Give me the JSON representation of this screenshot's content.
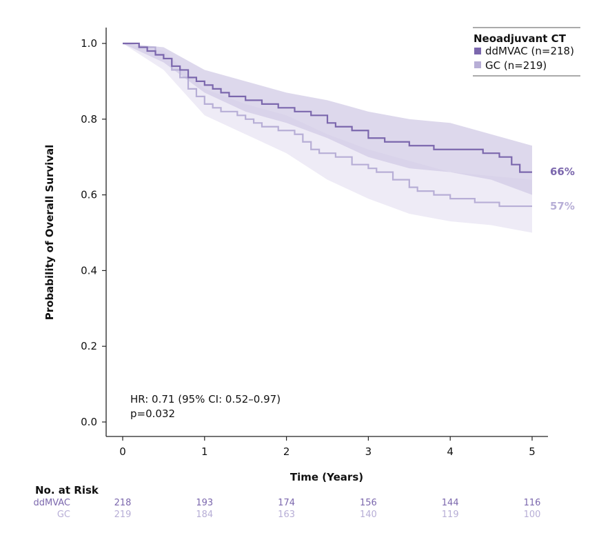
{
  "chart_data": {
    "type": "line",
    "title": "",
    "xlabel": "Time (Years)",
    "ylabel": "Probability of Overall Survival",
    "xlim": [
      0,
      5
    ],
    "ylim": [
      0,
      1.0
    ],
    "x_ticks": [
      "0",
      "1",
      "2",
      "3",
      "4",
      "5"
    ],
    "y_ticks": [
      "0.0",
      "0.2",
      "0.4",
      "0.6",
      "0.8",
      "1.0"
    ],
    "grid": false,
    "legend": {
      "title": "Neoadjuvant CT",
      "position": "top-right",
      "entries": [
        "ddMVAC (n=218)",
        "GC (n=219)"
      ]
    },
    "annotation": {
      "hr": "HR: 0.71 (95% CI: 0.52–0.97)",
      "p": "p=0.032"
    },
    "series": [
      {
        "name": "ddMVAC",
        "color": "#7b67ad",
        "band_color": "#d2cbe6",
        "end_label": "66%",
        "points": [
          [
            0,
            1.0
          ],
          [
            0.2,
            0.99
          ],
          [
            0.3,
            0.98
          ],
          [
            0.4,
            0.97
          ],
          [
            0.5,
            0.96
          ],
          [
            0.6,
            0.94
          ],
          [
            0.7,
            0.93
          ],
          [
            0.8,
            0.91
          ],
          [
            0.9,
            0.9
          ],
          [
            1.0,
            0.89
          ],
          [
            1.1,
            0.88
          ],
          [
            1.2,
            0.87
          ],
          [
            1.3,
            0.86
          ],
          [
            1.4,
            0.86
          ],
          [
            1.5,
            0.85
          ],
          [
            1.6,
            0.85
          ],
          [
            1.7,
            0.84
          ],
          [
            1.9,
            0.83
          ],
          [
            2.1,
            0.82
          ],
          [
            2.3,
            0.81
          ],
          [
            2.5,
            0.79
          ],
          [
            2.6,
            0.78
          ],
          [
            2.8,
            0.77
          ],
          [
            3.0,
            0.75
          ],
          [
            3.2,
            0.74
          ],
          [
            3.5,
            0.73
          ],
          [
            3.8,
            0.72
          ],
          [
            4.2,
            0.72
          ],
          [
            4.4,
            0.71
          ],
          [
            4.6,
            0.7
          ],
          [
            4.75,
            0.68
          ],
          [
            4.85,
            0.66
          ],
          [
            5.0,
            0.66
          ]
        ],
        "ci_upper": [
          [
            0,
            1.0
          ],
          [
            0.5,
            0.99
          ],
          [
            1.0,
            0.93
          ],
          [
            1.5,
            0.9
          ],
          [
            2.0,
            0.87
          ],
          [
            2.5,
            0.85
          ],
          [
            3.0,
            0.82
          ],
          [
            3.5,
            0.8
          ],
          [
            4.0,
            0.79
          ],
          [
            4.5,
            0.76
          ],
          [
            5.0,
            0.73
          ]
        ],
        "ci_lower": [
          [
            0,
            1.0
          ],
          [
            0.5,
            0.95
          ],
          [
            1.0,
            0.87
          ],
          [
            1.5,
            0.82
          ],
          [
            2.0,
            0.79
          ],
          [
            2.5,
            0.75
          ],
          [
            3.0,
            0.7
          ],
          [
            3.5,
            0.67
          ],
          [
            4.0,
            0.66
          ],
          [
            4.5,
            0.64
          ],
          [
            5.0,
            0.6
          ]
        ]
      },
      {
        "name": "GC",
        "color": "#b7aed6",
        "band_color": "#ece9f5",
        "end_label": "57%",
        "points": [
          [
            0,
            1.0
          ],
          [
            0.2,
            0.99
          ],
          [
            0.4,
            0.97
          ],
          [
            0.5,
            0.96
          ],
          [
            0.6,
            0.93
          ],
          [
            0.7,
            0.91
          ],
          [
            0.8,
            0.88
          ],
          [
            0.9,
            0.86
          ],
          [
            1.0,
            0.84
          ],
          [
            1.1,
            0.83
          ],
          [
            1.2,
            0.82
          ],
          [
            1.4,
            0.81
          ],
          [
            1.5,
            0.8
          ],
          [
            1.6,
            0.79
          ],
          [
            1.7,
            0.78
          ],
          [
            1.9,
            0.77
          ],
          [
            2.1,
            0.76
          ],
          [
            2.2,
            0.74
          ],
          [
            2.3,
            0.72
          ],
          [
            2.4,
            0.71
          ],
          [
            2.6,
            0.7
          ],
          [
            2.8,
            0.68
          ],
          [
            3.0,
            0.67
          ],
          [
            3.1,
            0.66
          ],
          [
            3.3,
            0.64
          ],
          [
            3.5,
            0.62
          ],
          [
            3.6,
            0.61
          ],
          [
            3.8,
            0.6
          ],
          [
            4.0,
            0.59
          ],
          [
            4.3,
            0.58
          ],
          [
            4.5,
            0.58
          ],
          [
            4.6,
            0.57
          ],
          [
            5.0,
            0.57
          ]
        ],
        "ci_upper": [
          [
            0,
            1.0
          ],
          [
            0.5,
            0.98
          ],
          [
            1.0,
            0.88
          ],
          [
            1.5,
            0.84
          ],
          [
            2.0,
            0.81
          ],
          [
            2.5,
            0.76
          ],
          [
            3.0,
            0.72
          ],
          [
            3.5,
            0.69
          ],
          [
            4.0,
            0.66
          ],
          [
            4.5,
            0.65
          ],
          [
            5.0,
            0.64
          ]
        ],
        "ci_lower": [
          [
            0,
            1.0
          ],
          [
            0.5,
            0.93
          ],
          [
            1.0,
            0.81
          ],
          [
            1.5,
            0.76
          ],
          [
            2.0,
            0.71
          ],
          [
            2.5,
            0.64
          ],
          [
            3.0,
            0.59
          ],
          [
            3.5,
            0.55
          ],
          [
            4.0,
            0.53
          ],
          [
            4.5,
            0.52
          ],
          [
            5.0,
            0.5
          ]
        ]
      }
    ]
  },
  "risk_table": {
    "title": "No. at Risk",
    "times": [
      0,
      1,
      2,
      3,
      4,
      5
    ],
    "rows": [
      {
        "label": "ddMVAC",
        "values": [
          "218",
          "193",
          "174",
          "156",
          "144",
          "116"
        ],
        "color": "#7b67ad"
      },
      {
        "label": "GC",
        "values": [
          "219",
          "184",
          "163",
          "140",
          "119",
          "100"
        ],
        "color": "#b7aed6"
      }
    ]
  }
}
